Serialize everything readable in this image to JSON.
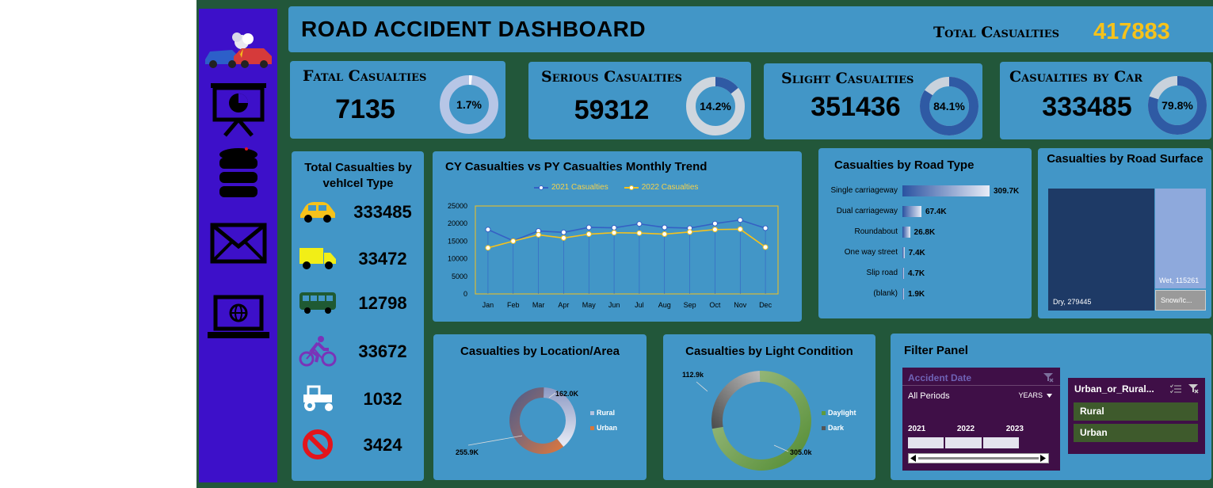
{
  "title": "ROAD ACCIDENT DASHBOARD",
  "total": {
    "label": "Total Casualties",
    "value": "417883"
  },
  "kpis": [
    {
      "label": "Fatal Casualties",
      "value": "7135",
      "pct": "1.7%",
      "fraction": 0.017,
      "ring": "#b7c6e6",
      "fill": "#ffffff"
    },
    {
      "label": "Serious Casualties",
      "value": "59312",
      "pct": "14.2%",
      "fraction": 0.142,
      "ring": "#cfd6de",
      "fill": "#2f5aa4"
    },
    {
      "label": "Slight Casualties",
      "value": "351436",
      "pct": "84.1%",
      "fraction": 0.841,
      "ring": "#c9d2dc",
      "fill": "#2f5aa4"
    },
    {
      "label": "Casualties by Car",
      "value": "333485",
      "pct": "79.8%",
      "fraction": 0.798,
      "ring": "#c9d2dc",
      "fill": "#2f5aa4"
    }
  ],
  "vehicle": {
    "title": "Total Casualties by vehIcel Type",
    "rows": [
      {
        "icon": "car-icon",
        "value": "333485",
        "color": "#f6c21b"
      },
      {
        "icon": "truck-icon",
        "value": "33472",
        "color": "#f2ee16"
      },
      {
        "icon": "bus-icon",
        "value": "12798",
        "color": "#1f5a33"
      },
      {
        "icon": "bicycle-icon",
        "value": "33672",
        "color": "#7a33b8"
      },
      {
        "icon": "tractor-icon",
        "value": "1032",
        "color": "#ffffff"
      },
      {
        "icon": "no-entry-icon",
        "value": "3424",
        "color": "#e3141b"
      }
    ]
  },
  "trend": {
    "title": "CY Casualties vs PY Casualties Monthly Trend",
    "legend": [
      "2021 Casualties",
      "2022 Casualties"
    ]
  },
  "road_type": {
    "title": "Casualties by Road Type",
    "rows": [
      {
        "label": "Single carriageway",
        "value": "309.7K",
        "num": 309.7
      },
      {
        "label": "Dual carriageway",
        "value": "67.4K",
        "num": 67.4
      },
      {
        "label": "Roundabout",
        "value": "26.8K",
        "num": 26.8
      },
      {
        "label": "One way street",
        "value": "7.4K",
        "num": 7.4
      },
      {
        "label": "Slip road",
        "value": "4.7K",
        "num": 4.7
      },
      {
        "label": "(blank)",
        "value": "1.9K",
        "num": 1.9
      }
    ]
  },
  "surface": {
    "title": "Casualties by Road Surface",
    "dry": "Dry, 279445",
    "wet": "Wet, 115261",
    "snow": "Snow/Ic..."
  },
  "location": {
    "title": "Casualties by Location/Area",
    "rural_value": "162.0K",
    "urban_value": "255.9K",
    "legend": [
      "Rural",
      "Urban"
    ]
  },
  "light": {
    "title": "Casualties by Light Condition",
    "daylight_value": "305.0k",
    "dark_value": "112.9k",
    "legend": [
      "Daylight",
      "Dark"
    ]
  },
  "filter": {
    "title": "Filter Panel",
    "date_slicer": {
      "title": "Accident Date",
      "period": "All Periods",
      "granularity": "YEARS",
      "years": [
        "2021",
        "2022",
        "2023"
      ]
    },
    "area_slicer": {
      "title": "Urban_or_Rural...",
      "options": [
        "Rural",
        "Urban"
      ]
    }
  },
  "chart_data": [
    {
      "type": "line",
      "title": "CY Casualties vs PY Casualties Monthly Trend",
      "categories": [
        "Jan",
        "Feb",
        "Mar",
        "Apr",
        "May",
        "Jun",
        "Jul",
        "Aug",
        "Sep",
        "Oct",
        "Nov",
        "Dec"
      ],
      "series": [
        {
          "name": "2021 Casualties",
          "values": [
            18300,
            15100,
            17900,
            17500,
            18900,
            18800,
            19900,
            18900,
            18700,
            20000,
            21000,
            18700
          ]
        },
        {
          "name": "2022 Casualties",
          "values": [
            13100,
            15000,
            16800,
            15900,
            17000,
            17400,
            17300,
            17000,
            17600,
            18300,
            18400,
            13300
          ]
        }
      ],
      "ylim": [
        0,
        25000
      ],
      "yticks": [
        "0",
        "5000",
        "10000",
        "15000",
        "20000",
        "25000"
      ],
      "legend": "top"
    },
    {
      "type": "pie",
      "title": "Casualties by Location/Area",
      "categories": [
        "Rural",
        "Urban"
      ],
      "values": [
        162.0,
        255.9
      ]
    },
    {
      "type": "pie",
      "title": "Casualties by Light Condition",
      "categories": [
        "Daylight",
        "Dark"
      ],
      "values": [
        305.0,
        112.9
      ]
    },
    {
      "type": "bar",
      "title": "Casualties by Road Type",
      "categories": [
        "Single carriageway",
        "Dual carriageway",
        "Roundabout",
        "One way street",
        "Slip road",
        "(blank)"
      ],
      "values": [
        309.7,
        67.4,
        26.8,
        7.4,
        4.7,
        1.9
      ]
    },
    {
      "type": "heatmap",
      "title": "Casualties by Road Surface",
      "categories": [
        "Dry",
        "Wet",
        "Snow/Ic..."
      ],
      "values": [
        279445,
        115261,
        null
      ]
    }
  ]
}
